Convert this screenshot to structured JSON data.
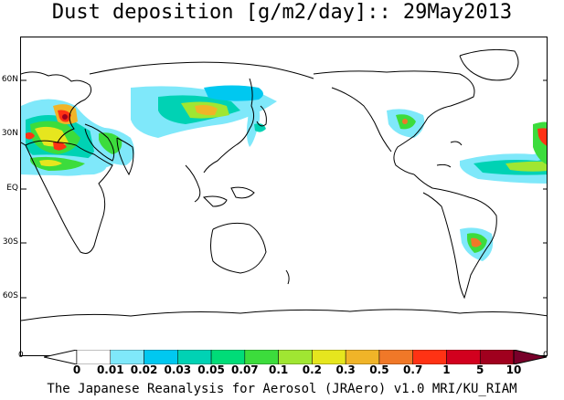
{
  "title": "Dust deposition [g/m2/day]:: 29May2013",
  "footer": "The Japanese Reanalysis for Aerosol (JRAero) v1.0 MRI/KU_RIAM",
  "latitude_labels": [
    "60N",
    "30N",
    "EQ",
    "30S",
    "60S"
  ],
  "edge_labels": {
    "left": "0",
    "right": "0"
  },
  "colorbar": {
    "labels": [
      "0",
      "0.01",
      "0.02",
      "0.03",
      "0.05",
      "0.07",
      "0.1",
      "0.2",
      "0.3",
      "0.5",
      "0.7",
      "1",
      "5",
      "10"
    ],
    "colors": [
      "#ffffff",
      "#ffffff",
      "#7fe8fa",
      "#00c8f0",
      "#00d2b4",
      "#00dc78",
      "#3cdc3c",
      "#a0e632",
      "#e6e61e",
      "#f0b428",
      "#f07828",
      "#ff3214",
      "#d2001e",
      "#a0001e",
      "#78002a"
    ]
  }
}
